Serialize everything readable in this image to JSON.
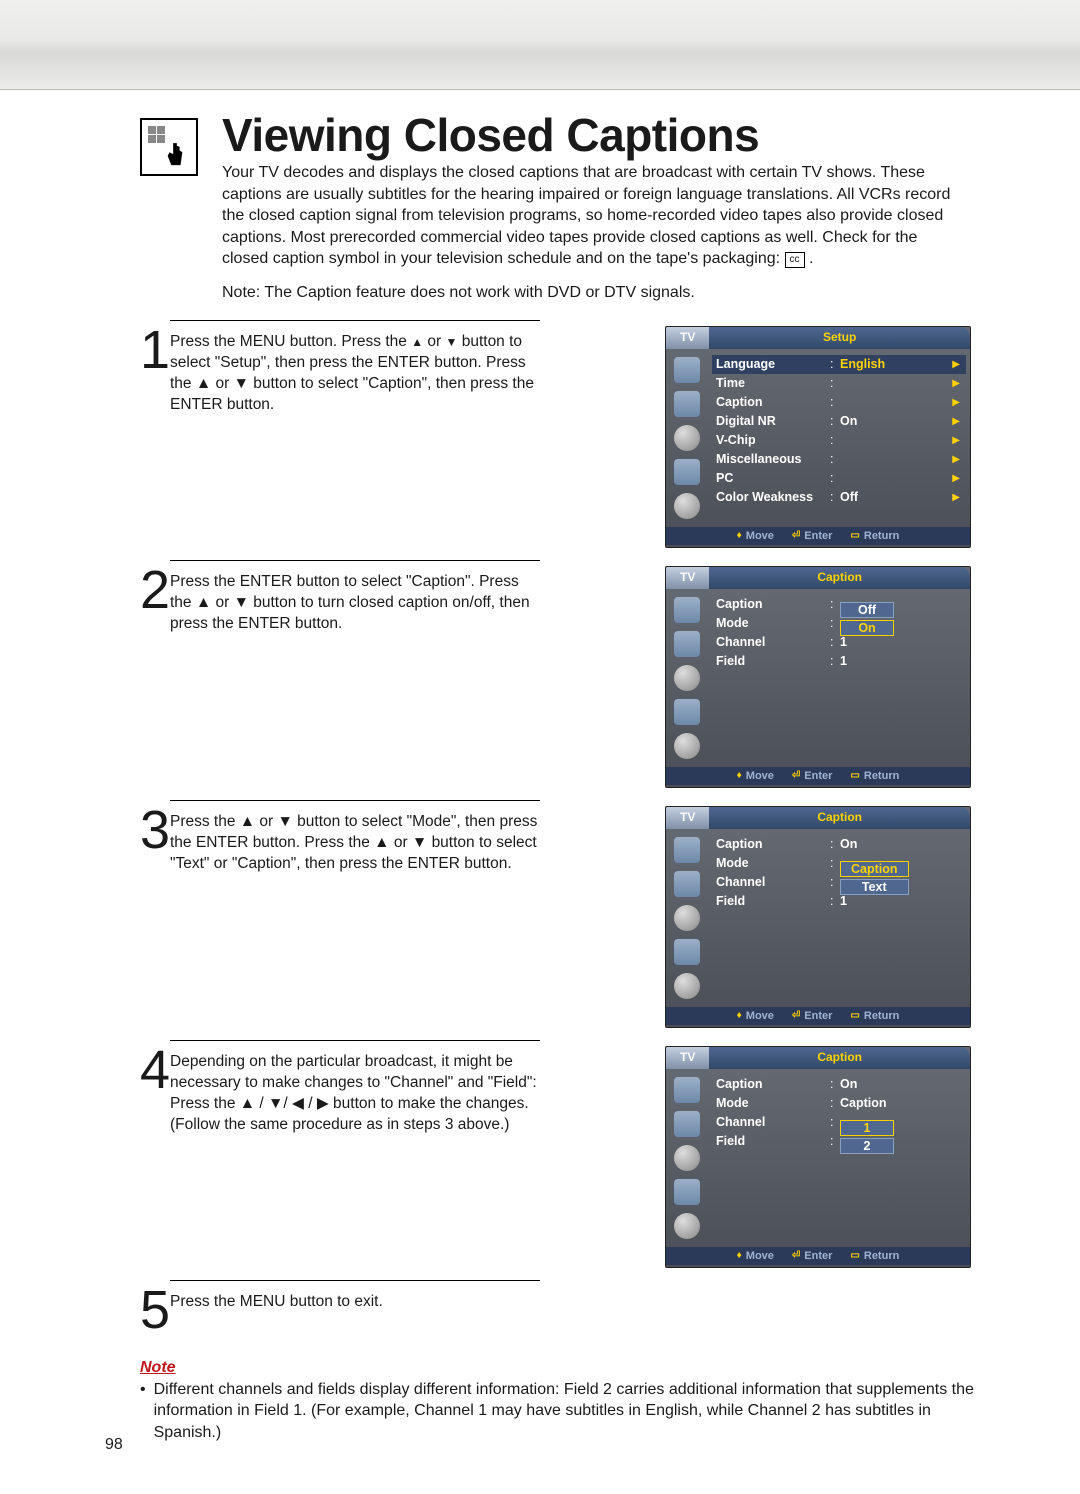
{
  "page_number": "98",
  "title": "Viewing Closed Captions",
  "intro": "Your TV decodes and displays the closed captions that are broadcast with certain TV shows. These captions are usually subtitles for the hearing impaired or foreign language translations. All VCRs record the closed caption signal from television programs, so home-recorded video tapes also provide closed captions. Most prerecorded commercial video tapes provide closed captions as well. Check for the closed caption symbol in your television schedule and on the tape's packaging:",
  "cc_symbol": "cc",
  "note_top": "Note: The Caption feature does not work with DVD or DTV signals.",
  "steps": [
    {
      "num": "1",
      "text_pre": "Press the MENU button. Press the ",
      "text_mid": " or ",
      "text_post": " button to select \"Setup\", then press the ENTER button. Press the ▲ or ▼ button to select \"Caption\", then press the ENTER button."
    },
    {
      "num": "2",
      "text": "Press the ENTER button to select \"Caption\". Press the ▲ or ▼ button to turn closed caption on/off, then press the ENTER button."
    },
    {
      "num": "3",
      "text": "Press the ▲ or ▼ button to select \"Mode\", then press the ENTER button. Press the ▲ or ▼ button to select \"Text\" or \"Caption\", then press the ENTER button."
    },
    {
      "num": "4",
      "text": "Depending on the particular broadcast, it might be necessary to make changes to \"Channel\" and \"Field\": Press the ▲ / ▼/ ◀ / ▶ button to make the changes. (Follow the same procedure as in steps 3 above.)"
    },
    {
      "num": "5",
      "text": "Press the MENU button to exit."
    }
  ],
  "osd_common": {
    "tv_label": "TV",
    "footer_move": "Move",
    "footer_enter": "Enter",
    "footer_return": "Return"
  },
  "osd1": {
    "title": "Setup",
    "rows": [
      {
        "label": "Language",
        "value": "English",
        "hi": true
      },
      {
        "label": "Time",
        "value": ""
      },
      {
        "label": "Caption",
        "value": ""
      },
      {
        "label": "Digital NR",
        "value": "On"
      },
      {
        "label": "V-Chip",
        "value": ""
      },
      {
        "label": "Miscellaneous",
        "value": ""
      },
      {
        "label": "PC",
        "value": ""
      },
      {
        "label": "Color Weakness",
        "value": "Off"
      }
    ]
  },
  "osd2": {
    "title": "Caption",
    "rows": [
      {
        "label": "Caption",
        "boxes": [
          "Off",
          "On"
        ],
        "box_sel": 1
      },
      {
        "label": "Mode",
        "value": ""
      },
      {
        "label": "Channel",
        "value": "1"
      },
      {
        "label": "Field",
        "value": "1"
      }
    ]
  },
  "osd3": {
    "title": "Caption",
    "rows": [
      {
        "label": "Caption",
        "value": "On"
      },
      {
        "label": "Mode",
        "boxes": [
          "Caption",
          "Text"
        ],
        "box_sel": 0
      },
      {
        "label": "Channel",
        "value": ""
      },
      {
        "label": "Field",
        "value": "1"
      }
    ]
  },
  "osd4": {
    "title": "Caption",
    "rows": [
      {
        "label": "Caption",
        "value": "On"
      },
      {
        "label": "Mode",
        "value": "Caption"
      },
      {
        "label": "Channel",
        "boxes": [
          "1",
          "2"
        ],
        "box_sel": 0
      },
      {
        "label": "Field",
        "value": ""
      }
    ]
  },
  "note_bottom": {
    "heading": "Note",
    "bullet": "•",
    "text": "Different channels and fields display different information: Field 2 carries additional information that supplements the information in Field 1. (For example, Channel 1 may have subtitles in English, while Channel 2 has subtitles in Spanish.)"
  }
}
